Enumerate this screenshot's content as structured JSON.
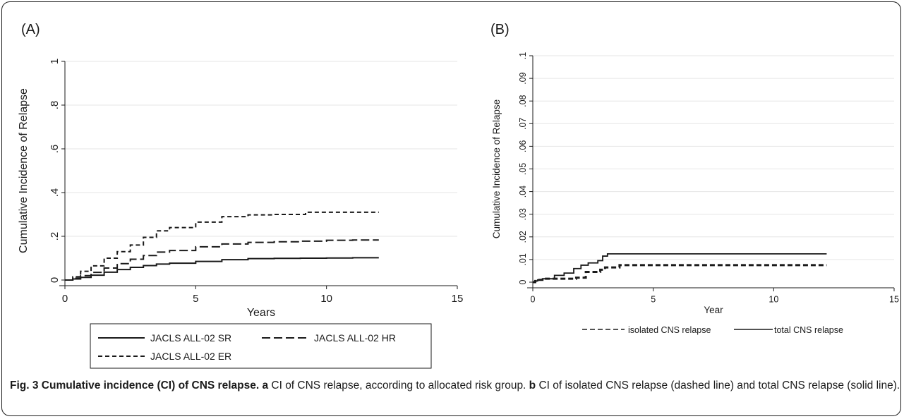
{
  "panels": [
    {
      "label": "(A)"
    },
    {
      "label": "(B)"
    }
  ],
  "chart_data": [
    {
      "type": "line",
      "panel": "(A)",
      "xlabel": "Years",
      "ylabel": "Cumulative Incidence of Relapse",
      "xlim": [
        0,
        15
      ],
      "ylim": [
        0,
        1
      ],
      "xticks": [
        0,
        5,
        10,
        15
      ],
      "yticks": [
        0,
        0.2,
        0.4,
        0.6,
        0.8,
        1
      ],
      "ytick_labels": [
        "0",
        ".2",
        ".4",
        ".6",
        ".8",
        "1"
      ],
      "grid": true,
      "legend_position": "bottom",
      "series": [
        {
          "name": "JACLS ALL-02 SR",
          "style": "solid",
          "x": [
            0,
            0.3,
            0.6,
            1,
            1.5,
            2,
            2.5,
            3,
            3.5,
            4,
            5,
            6,
            7,
            8,
            9,
            10,
            11,
            12
          ],
          "y": [
            0,
            0.005,
            0.012,
            0.022,
            0.036,
            0.048,
            0.058,
            0.066,
            0.073,
            0.077,
            0.085,
            0.093,
            0.098,
            0.099,
            0.1,
            0.101,
            0.102,
            0.102
          ]
        },
        {
          "name": "JACLS ALL-02 HR",
          "style": "longdash",
          "x": [
            0,
            0.3,
            0.6,
            1,
            1.5,
            2,
            2.5,
            3,
            3.5,
            4,
            5,
            6,
            7,
            8,
            9,
            10,
            11,
            12
          ],
          "y": [
            0,
            0.008,
            0.02,
            0.035,
            0.055,
            0.075,
            0.095,
            0.112,
            0.128,
            0.135,
            0.152,
            0.165,
            0.172,
            0.175,
            0.178,
            0.182,
            0.183,
            0.183
          ]
        },
        {
          "name": "JACLS ALL-02 ER",
          "style": "shortdash",
          "x": [
            0,
            0.3,
            0.6,
            1,
            1.5,
            2,
            2.5,
            3,
            3.5,
            4,
            5,
            6,
            7,
            8,
            9,
            9.2,
            10,
            11,
            12
          ],
          "y": [
            0,
            0.015,
            0.04,
            0.065,
            0.1,
            0.13,
            0.16,
            0.195,
            0.225,
            0.24,
            0.265,
            0.29,
            0.298,
            0.3,
            0.3,
            0.31,
            0.31,
            0.31,
            0.31
          ]
        }
      ]
    },
    {
      "type": "line",
      "panel": "(B)",
      "xlabel": "Year",
      "ylabel": "Cumulative Incidence of Relapse",
      "xlim": [
        0,
        15
      ],
      "ylim": [
        0,
        0.1
      ],
      "xticks": [
        0,
        5,
        10,
        15
      ],
      "yticks": [
        0,
        0.01,
        0.02,
        0.03,
        0.04,
        0.05,
        0.06,
        0.07,
        0.08,
        0.09,
        0.1
      ],
      "ytick_labels": [
        "0",
        ".01",
        ".02",
        ".03",
        ".04",
        ".05",
        ".06",
        ".07",
        ".08",
        ".09",
        ".1"
      ],
      "grid": true,
      "legend_position": "bottom",
      "series": [
        {
          "name": "isolated CNS relapse",
          "style": "dash",
          "x": [
            0,
            0.1,
            0.2,
            0.4,
            1.2,
            1.8,
            2.2,
            2.8,
            3.0,
            3.5,
            3.6,
            12.2
          ],
          "y": [
            0,
            0.0005,
            0.001,
            0.0015,
            0.0015,
            0.002,
            0.0045,
            0.0055,
            0.0065,
            0.0065,
            0.0075,
            0.0075
          ]
        },
        {
          "name": "total CNS relapse",
          "style": "solid",
          "x": [
            0,
            0.1,
            0.2,
            0.4,
            0.9,
            1.3,
            1.7,
            2.0,
            2.3,
            2.7,
            2.9,
            3.1,
            12.2
          ],
          "y": [
            0,
            0.0005,
            0.001,
            0.0015,
            0.003,
            0.004,
            0.006,
            0.0075,
            0.0085,
            0.0095,
            0.0115,
            0.0125,
            0.0125
          ]
        }
      ]
    }
  ],
  "caption": {
    "bold": "Fig. 3 Cumulative incidence (CI) of CNS relapse.",
    "a_label": "a",
    "a_text": " CI of CNS relapse, according to allocated risk group. ",
    "b_label": "b",
    "b_text": " CI of isolated CNS relapse (dashed line) and total CNS relapse (solid line)."
  }
}
